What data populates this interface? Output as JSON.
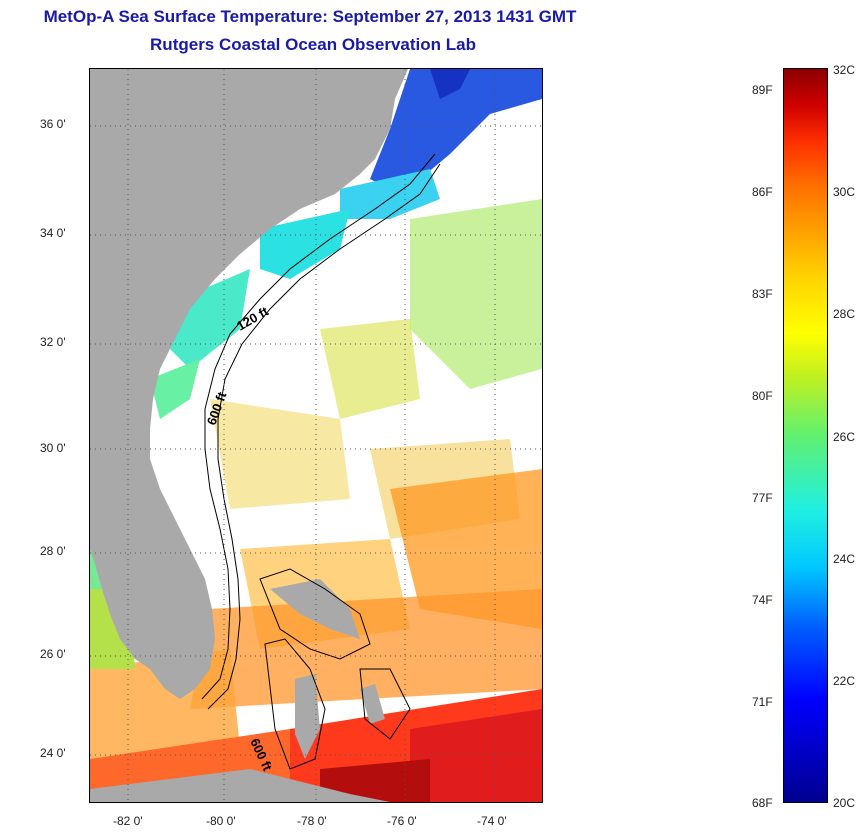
{
  "title": {
    "line1": "MetOp-A Sea Surface Temperature:  September 27, 2013 1431 GMT",
    "line2": "Rutgers Coastal Ocean Observation Lab"
  },
  "map": {
    "y_tick_labels": [
      "36 0'",
      "34 0'",
      "32 0'",
      "30 0'",
      "28 0'",
      "26 0'",
      "24 0'"
    ],
    "x_tick_labels": [
      "-82 0'",
      "-80 0'",
      "-78 0'",
      "-76 0'",
      "-74 0'"
    ],
    "isobath_labels": [
      "120 ft",
      "600 ft",
      "600 ft"
    ],
    "colors": {
      "land": "#a9a9a9",
      "clouds": "#ffffff",
      "grid": "#555555"
    }
  },
  "colorbar": {
    "fahrenheit_labels": [
      "89F",
      "86F",
      "83F",
      "80F",
      "77F",
      "74F",
      "71F",
      "68F"
    ],
    "celsius_labels": [
      "32C",
      "30C",
      "28C",
      "26C",
      "24C",
      "22C",
      "20C"
    ],
    "range_c": [
      20,
      32
    ]
  }
}
